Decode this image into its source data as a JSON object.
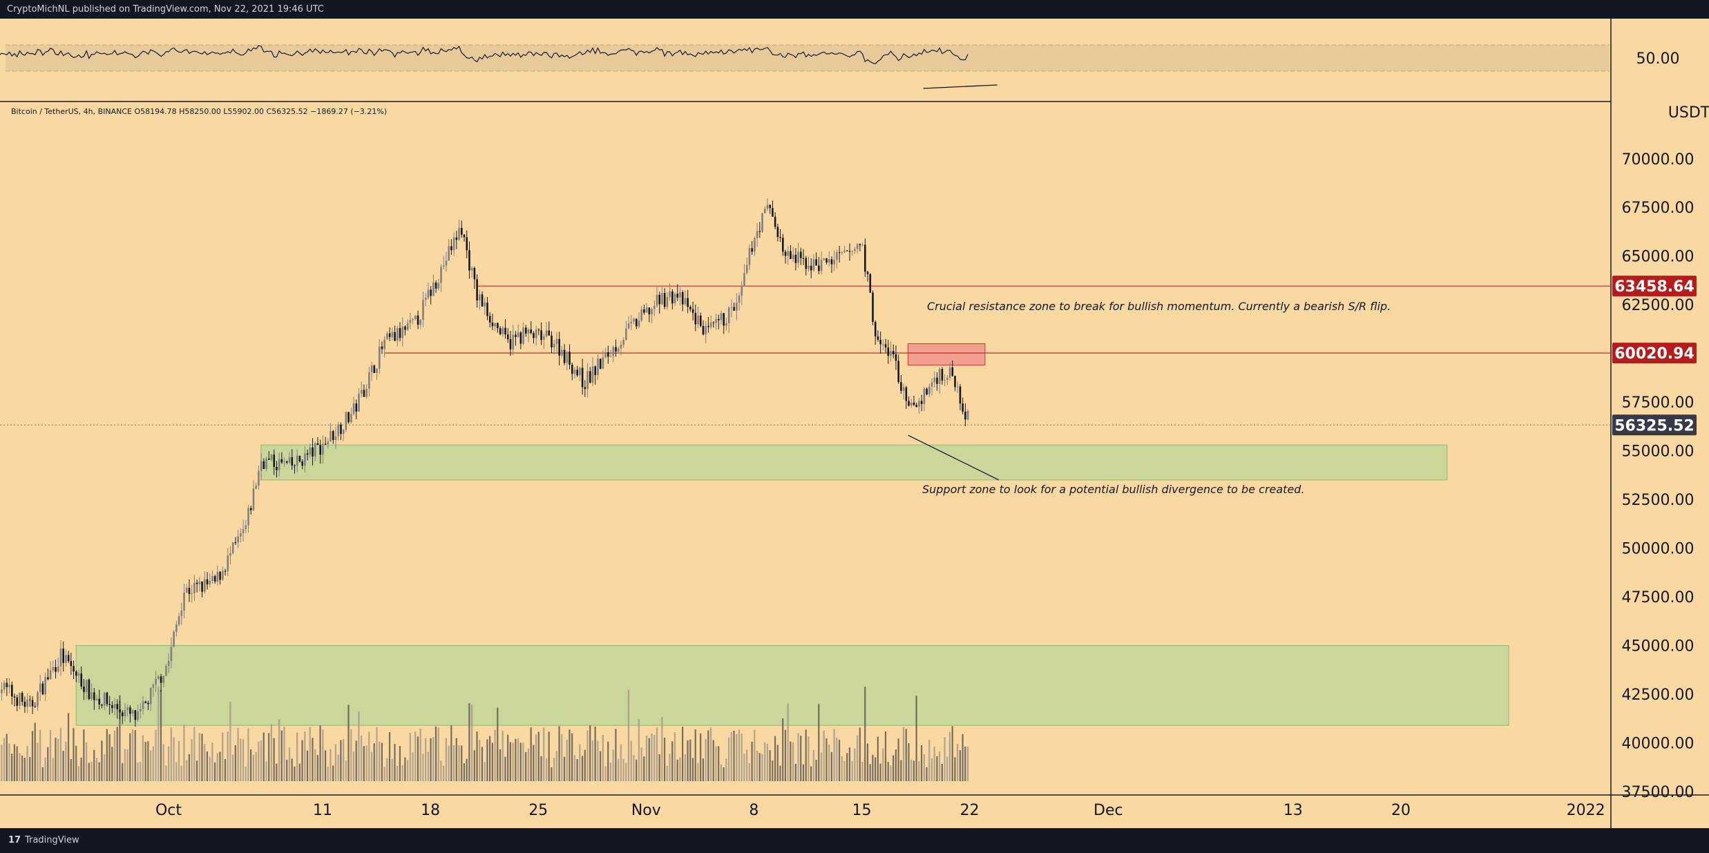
{
  "header": {
    "publisher_line": "CryptoMichNL published on TradingView.com, Nov 22, 2021 19:46 UTC"
  },
  "footer": {
    "brand": "TradingView",
    "logo_text": "17"
  },
  "colors": {
    "background": "#fad8a2",
    "frame": "#131722",
    "resistance_line": "#c62828",
    "resistance_zone": "#ef9a8a",
    "support_zone": "#c5d69a",
    "candle_up": "#808080",
    "candle_down": "#131722",
    "badge_red": "#b71c1c",
    "badge_dark": "#363a45"
  },
  "chart_data": {
    "type": "candlestick",
    "legend": {
      "symbol": "Bitcoin / TetherUS, 4h, BINANCE",
      "open": "O58194.78",
      "high": "H58250.00",
      "low": "L55902.00",
      "close": "C56325.52",
      "change": "−1869.27 (−3.21%)"
    },
    "price_axis": {
      "currency": "USDT",
      "ticks": [
        "70000.00",
        "67500.00",
        "65000.00",
        "62500.00",
        "57500.00",
        "55000.00",
        "52500.00",
        "50000.00",
        "47500.00",
        "45000.00",
        "42500.00",
        "40000.00",
        "37500.00"
      ],
      "ylim": [
        36400,
        74000
      ]
    },
    "time_axis": {
      "ticks": [
        "Oct",
        "11",
        "18",
        "25",
        "Nov",
        "8",
        "15",
        "22",
        "Dec",
        "13",
        "20",
        "2022"
      ]
    },
    "price_labels": [
      {
        "value": 63458.64,
        "text": "63458.64",
        "style": "red"
      },
      {
        "value": 60020.94,
        "text": "60020.94",
        "style": "red"
      },
      {
        "value": 56325.52,
        "text": "56325.52",
        "style": "dark"
      }
    ],
    "horizontal_lines": [
      63458.64,
      60020.94
    ],
    "zones": [
      {
        "name": "resistance",
        "from_date": "2021-11-18",
        "to_date": "2021-11-23",
        "low": 59400,
        "high": 60500
      },
      {
        "name": "support-upper",
        "from_date": "2021-10-07",
        "to_date": "2021-12-23",
        "low": 53500,
        "high": 55300
      },
      {
        "name": "support-lower",
        "from_date": "2021-09-25",
        "to_date": "2021-12-27",
        "low": 40900,
        "high": 45000
      }
    ],
    "annotations": [
      "Crucial resistance zone to break for bullish momentum. Currently a bearish S/R flip.",
      "Support zone to look for a potential bullish divergence to be created."
    ],
    "close_path": [
      [
        "2021-09-20",
        43000
      ],
      [
        "2021-09-22",
        41800
      ],
      [
        "2021-09-24",
        44500
      ],
      [
        "2021-09-26",
        42500
      ],
      [
        "2021-09-29",
        41200
      ],
      [
        "2021-10-01",
        44200
      ],
      [
        "2021-10-02",
        47800
      ],
      [
        "2021-10-04",
        48200
      ],
      [
        "2021-10-06",
        51000
      ],
      [
        "2021-10-07",
        54500
      ],
      [
        "2021-10-09",
        54200
      ],
      [
        "2021-10-11",
        55300
      ],
      [
        "2021-10-13",
        57000
      ],
      [
        "2021-10-15",
        60500
      ],
      [
        "2021-10-17",
        61500
      ],
      [
        "2021-10-20",
        66500
      ],
      [
        "2021-10-21",
        63000
      ],
      [
        "2021-10-23",
        60500
      ],
      [
        "2021-10-24",
        61000
      ],
      [
        "2021-10-26",
        60700
      ],
      [
        "2021-10-28",
        58500
      ],
      [
        "2021-10-31",
        61300
      ],
      [
        "2021-11-02",
        62800
      ],
      [
        "2021-11-03",
        63000
      ],
      [
        "2021-11-05",
        61000
      ],
      [
        "2021-11-07",
        62500
      ],
      [
        "2021-11-08",
        66000
      ],
      [
        "2021-11-09",
        67600
      ],
      [
        "2021-11-10",
        65000
      ],
      [
        "2021-11-12",
        64500
      ],
      [
        "2021-11-14",
        65000
      ],
      [
        "2021-11-15",
        65700
      ],
      [
        "2021-11-16",
        60500
      ],
      [
        "2021-11-17",
        60000
      ],
      [
        "2021-11-18",
        57000
      ],
      [
        "2021-11-19",
        57800
      ],
      [
        "2021-11-20",
        59000
      ],
      [
        "2021-11-21",
        58800
      ],
      [
        "2021-11-22",
        56325.52
      ]
    ]
  }
}
